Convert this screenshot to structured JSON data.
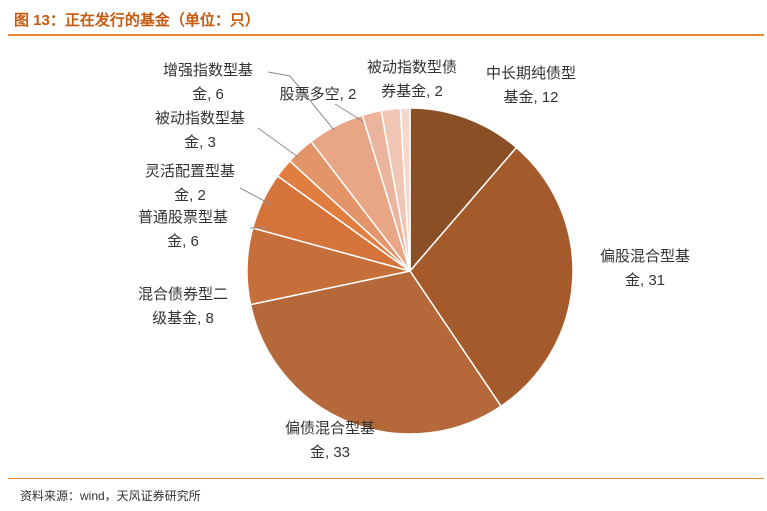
{
  "figure_title": "图 13：正在发行的基金（单位：只）",
  "source": "资料来源：wind，天风证券研究所",
  "chart_data": {
    "type": "pie",
    "title": "",
    "slices": [
      {
        "name": "中长期纯债型基金",
        "value": 12,
        "color": "#8b4f26",
        "label_lines": [
          "中长期纯债型",
          "基金, 12"
        ]
      },
      {
        "name": "偏股混合型基金",
        "value": 31,
        "color": "#a55a2b",
        "label_lines": [
          "偏股混合型基",
          "金, 31"
        ]
      },
      {
        "name": "偏债混合型基金",
        "value": 33,
        "color": "#b5693a",
        "label_lines": [
          "偏债混合型基",
          "金, 33"
        ]
      },
      {
        "name": "混合债券型二级基金",
        "value": 8,
        "color": "#c56f3a",
        "label_lines": [
          "混合债券型二",
          "级基金, 8"
        ]
      },
      {
        "name": "普通股票型基金",
        "value": 6,
        "color": "#d4733a",
        "label_lines": [
          "普通股票型基",
          "金, 6"
        ]
      },
      {
        "name": "灵活配置型基金",
        "value": 2,
        "color": "#e07d3f",
        "label_lines": [
          "灵活配置型基",
          "金, 2"
        ]
      },
      {
        "name": "被动指数型基金",
        "value": 3,
        "color": "#e39468",
        "label_lines": [
          "被动指数型基",
          "金, 3"
        ]
      },
      {
        "name": "增强指数型基金",
        "value": 6,
        "color": "#e8a686",
        "label_lines": [
          "增强指数型基",
          "金, 6"
        ]
      },
      {
        "name": "股票多空",
        "value": 2,
        "color": "#ebb49c",
        "label_lines": [
          "股票多空, 2"
        ]
      },
      {
        "name": "被动指数型债券基金",
        "value": 2,
        "color": "#f0c6b4",
        "label_lines": [
          "被动指数型债",
          "券基金, 2"
        ]
      },
      {
        "name": "",
        "value": 1,
        "color": "#f4d8cb",
        "label_lines": []
      }
    ]
  }
}
